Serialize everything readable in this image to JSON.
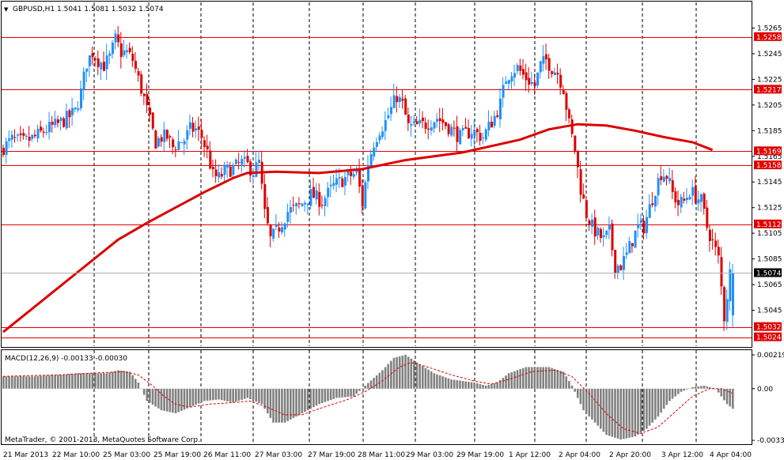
{
  "window": {
    "header": "GBPUSD,H1  1.5041 1.5081 1.5032 1.5074",
    "dropdown_glyph": "▼",
    "copyright": "MetaTrader, © 2001-2013, MetaQuotes Software Corp."
  },
  "colors": {
    "background": "#ffffff",
    "bull": "#1e90ff",
    "bear": "#dc0000",
    "ma": "#dc0000",
    "level_line": "#e00000",
    "histogram": "#808080",
    "signal": "#dc0000",
    "grid": "#000000"
  },
  "macd": {
    "label": "MACD(12,26,9) -0.00133 -0.00030",
    "ticks": [
      {
        "value": 0.00219,
        "label": "0.00219"
      },
      {
        "value": 0,
        "label": "0.00"
      },
      {
        "value": -0.00335,
        "label": "-0.00335"
      }
    ]
  },
  "price_ticks": [
    "1.5265",
    "1.5245",
    "1.5225",
    "1.5205",
    "1.5185",
    "1.5165",
    "1.5145",
    "1.5125",
    "1.5105",
    "1.5085",
    "1.5065",
    "1.5045"
  ],
  "level_tags": [
    "1.5258",
    "1.5217",
    "1.5169",
    "1.5158",
    "1.5112",
    "1.5074",
    "1.5032",
    "1.5024"
  ],
  "time_labels": [
    "21 Mar 2013",
    "22 Mar 10:00",
    "25 Mar 03:00",
    "25 Mar 19:00",
    "26 Mar 11:00",
    "27 Mar 03:00",
    "27 Mar 19:00",
    "28 Mar 11:00",
    "29 Mar 03:00",
    "29 Mar 19:00",
    "1 Apr 12:00",
    "2 Apr 04:00",
    "2 Apr 20:00",
    "3 Apr 12:00",
    "4 Apr 04:00"
  ],
  "chart_data": [
    {
      "type": "candlestick",
      "symbol": "GBPUSD",
      "timeframe": "H1",
      "ohlc_last": {
        "open": 1.5041,
        "high": 1.5081,
        "low": 1.5032,
        "close": 1.5074
      },
      "y_axis": {
        "ticks": [
          1.5265,
          1.5245,
          1.5225,
          1.5205,
          1.5185,
          1.5165,
          1.5145,
          1.5125,
          1.5105,
          1.5085,
          1.5065,
          1.5045
        ],
        "range": [
          1.5017,
          1.5285
        ]
      },
      "x_axis": {
        "labels": [
          "21 Mar 2013",
          "22 Mar 10:00",
          "25 Mar 03:00",
          "25 Mar 19:00",
          "26 Mar 11:00",
          "27 Mar 03:00",
          "27 Mar 19:00",
          "28 Mar 11:00",
          "29 Mar 03:00",
          "29 Mar 19:00",
          "1 Apr 12:00",
          "2 Apr 04:00",
          "2 Apr 20:00",
          "3 Apr 12:00",
          "4 Apr 04:00"
        ]
      },
      "horizontal_levels": [
        1.5258,
        1.5217,
        1.5169,
        1.5158,
        1.5112,
        1.5032,
        1.5024
      ],
      "current_price": 1.5074,
      "grid": "vertical dashed",
      "price_path": [
        [
          0,
          1.517
        ],
        [
          4,
          1.5178
        ],
        [
          8,
          1.5176
        ],
        [
          12,
          1.518
        ],
        [
          16,
          1.5186
        ],
        [
          20,
          1.519
        ],
        [
          24,
          1.5196
        ],
        [
          26,
          1.52
        ],
        [
          28,
          1.5215
        ],
        [
          30,
          1.5238
        ],
        [
          32,
          1.5246
        ],
        [
          34,
          1.524
        ],
        [
          36,
          1.5236
        ],
        [
          38,
          1.5242
        ],
        [
          40,
          1.5256
        ],
        [
          42,
          1.5246
        ],
        [
          44,
          1.5246
        ],
        [
          46,
          1.524
        ],
        [
          48,
          1.5225
        ],
        [
          50,
          1.521
        ],
        [
          52,
          1.5192
        ],
        [
          54,
          1.5176
        ],
        [
          56,
          1.518
        ],
        [
          58,
          1.518
        ],
        [
          60,
          1.5172
        ],
        [
          62,
          1.5176
        ],
        [
          64,
          1.5178
        ],
        [
          66,
          1.5186
        ],
        [
          68,
          1.5186
        ],
        [
          70,
          1.518
        ],
        [
          72,
          1.5168
        ],
        [
          74,
          1.515
        ],
        [
          76,
          1.5148
        ],
        [
          78,
          1.5153
        ],
        [
          80,
          1.5155
        ],
        [
          82,
          1.5157
        ],
        [
          84,
          1.516
        ],
        [
          86,
          1.5158
        ],
        [
          88,
          1.5153
        ],
        [
          90,
          1.516
        ],
        [
          92,
          1.512
        ],
        [
          94,
          1.51
        ],
        [
          96,
          1.5106
        ],
        [
          98,
          1.5114
        ],
        [
          100,
          1.5122
        ],
        [
          104,
          1.5126
        ],
        [
          108,
          1.5135
        ],
        [
          112,
          1.513
        ],
        [
          116,
          1.5142
        ],
        [
          120,
          1.5148
        ],
        [
          124,
          1.5152
        ],
        [
          126,
          1.5128
        ],
        [
          128,
          1.516
        ],
        [
          130,
          1.5176
        ],
        [
          132,
          1.5186
        ],
        [
          134,
          1.5192
        ],
        [
          136,
          1.5202
        ],
        [
          138,
          1.5212
        ],
        [
          140,
          1.5205
        ],
        [
          142,
          1.5188
        ],
        [
          144,
          1.5188
        ],
        [
          148,
          1.519
        ],
        [
          152,
          1.5195
        ],
        [
          156,
          1.5188
        ],
        [
          160,
          1.518
        ],
        [
          164,
          1.5185
        ],
        [
          168,
          1.518
        ],
        [
          172,
          1.5196
        ],
        [
          174,
          1.5206
        ],
        [
          176,
          1.5226
        ],
        [
          178,
          1.5232
        ],
        [
          180,
          1.5234
        ],
        [
          182,
          1.5228
        ],
        [
          184,
          1.5224
        ],
        [
          186,
          1.522
        ],
        [
          188,
          1.5236
        ],
        [
          190,
          1.524
        ],
        [
          192,
          1.5234
        ],
        [
          194,
          1.523
        ],
        [
          196,
          1.5218
        ],
        [
          198,
          1.519
        ],
        [
          200,
          1.517
        ],
        [
          202,
          1.514
        ],
        [
          204,
          1.512
        ],
        [
          206,
          1.511
        ],
        [
          208,
          1.5104
        ],
        [
          210,
          1.51
        ],
        [
          212,
          1.5106
        ],
        [
          214,
          1.508
        ],
        [
          216,
          1.508
        ],
        [
          218,
          1.5088
        ],
        [
          220,
          1.51
        ],
        [
          222,
          1.511
        ],
        [
          224,
          1.511
        ],
        [
          226,
          1.5125
        ],
        [
          228,
          1.514
        ],
        [
          230,
          1.5152
        ],
        [
          232,
          1.515
        ],
        [
          234,
          1.5136
        ],
        [
          236,
          1.5128
        ],
        [
          238,
          1.513
        ],
        [
          240,
          1.5138
        ],
        [
          242,
          1.5134
        ],
        [
          244,
          1.513
        ],
        [
          246,
          1.511
        ],
        [
          248,
          1.5098
        ],
        [
          250,
          1.5085
        ],
        [
          252,
          1.504
        ],
        [
          254,
          1.5074
        ]
      ],
      "moving_average": [
        [
          0,
          1.5028
        ],
        [
          10,
          1.5046
        ],
        [
          20,
          1.5064
        ],
        [
          30,
          1.5082
        ],
        [
          40,
          1.51
        ],
        [
          50,
          1.5113
        ],
        [
          60,
          1.5125
        ],
        [
          70,
          1.5137
        ],
        [
          80,
          1.5148
        ],
        [
          85,
          1.5152
        ],
        [
          95,
          1.5153
        ],
        [
          110,
          1.5152
        ],
        [
          125,
          1.5155
        ],
        [
          140,
          1.5162
        ],
        [
          160,
          1.5168
        ],
        [
          180,
          1.5178
        ],
        [
          190,
          1.5186
        ],
        [
          200,
          1.519
        ],
        [
          210,
          1.5189
        ],
        [
          220,
          1.5185
        ],
        [
          230,
          1.518
        ],
        [
          240,
          1.5176
        ],
        [
          247,
          1.517
        ]
      ]
    },
    {
      "type": "bar",
      "name": "MACD(12,26,9)",
      "last_values": {
        "macd": -0.00133,
        "signal": -0.0003
      },
      "y_axis": {
        "ticks": [
          0.00219,
          0,
          -0.00335
        ],
        "range": [
          -0.0036,
          0.0025
        ]
      },
      "macd_path": [
        [
          0,
          0.0008
        ],
        [
          10,
          0.0008
        ],
        [
          20,
          0.0009
        ],
        [
          26,
          0.001
        ],
        [
          30,
          0.001
        ],
        [
          36,
          0.001
        ],
        [
          40,
          0.0012
        ],
        [
          44,
          0.0011
        ],
        [
          47,
          0.0004
        ],
        [
          50,
          -0.0008
        ],
        [
          55,
          -0.0014
        ],
        [
          60,
          -0.0016
        ],
        [
          65,
          -0.0012
        ],
        [
          70,
          -0.0008
        ],
        [
          75,
          -0.0007
        ],
        [
          80,
          -0.0009
        ],
        [
          85,
          -0.0006
        ],
        [
          90,
          -0.001
        ],
        [
          94,
          -0.0022
        ],
        [
          98,
          -0.0022
        ],
        [
          104,
          -0.0016
        ],
        [
          110,
          -0.001
        ],
        [
          116,
          -0.0006
        ],
        [
          122,
          -0.0005
        ],
        [
          126,
          0.0002
        ],
        [
          132,
          0.0012
        ],
        [
          136,
          0.002
        ],
        [
          140,
          0.0022
        ],
        [
          144,
          0.0017
        ],
        [
          150,
          0.001
        ],
        [
          156,
          0.0006
        ],
        [
          164,
          0.0004
        ],
        [
          168,
          0.0002
        ],
        [
          172,
          0.0004
        ],
        [
          176,
          0.001
        ],
        [
          182,
          0.0014
        ],
        [
          190,
          0.0014
        ],
        [
          195,
          0.0011
        ],
        [
          198,
          0.0002
        ],
        [
          202,
          -0.0014
        ],
        [
          206,
          -0.0022
        ],
        [
          210,
          -0.003
        ],
        [
          215,
          -0.0033
        ],
        [
          220,
          -0.0031
        ],
        [
          224,
          -0.0026
        ],
        [
          228,
          -0.0018
        ],
        [
          232,
          -0.0008
        ],
        [
          236,
          -0.0002
        ],
        [
          240,
          0.0001
        ],
        [
          244,
          0.0002
        ],
        [
          248,
          0.0
        ],
        [
          252,
          -0.001
        ],
        [
          254,
          -0.0013
        ]
      ],
      "signal_path": [
        [
          0,
          0.0008
        ],
        [
          20,
          0.0009
        ],
        [
          30,
          0.001
        ],
        [
          42,
          0.0011
        ],
        [
          47,
          0.0009
        ],
        [
          52,
          0.0002
        ],
        [
          56,
          -0.0005
        ],
        [
          60,
          -0.001
        ],
        [
          65,
          -0.0012
        ],
        [
          72,
          -0.001
        ],
        [
          80,
          -0.0009
        ],
        [
          86,
          -0.0008
        ],
        [
          92,
          -0.0012
        ],
        [
          98,
          -0.0017
        ],
        [
          104,
          -0.0017
        ],
        [
          110,
          -0.0013
        ],
        [
          120,
          -0.0007
        ],
        [
          126,
          -0.0002
        ],
        [
          132,
          0.0005
        ],
        [
          138,
          0.0014
        ],
        [
          142,
          0.0017
        ],
        [
          148,
          0.0014
        ],
        [
          156,
          0.0009
        ],
        [
          164,
          0.0005
        ],
        [
          170,
          0.0003
        ],
        [
          176,
          0.0006
        ],
        [
          184,
          0.0011
        ],
        [
          192,
          0.0012
        ],
        [
          198,
          0.0008
        ],
        [
          204,
          -0.0003
        ],
        [
          210,
          -0.0016
        ],
        [
          216,
          -0.0026
        ],
        [
          222,
          -0.0029
        ],
        [
          228,
          -0.0025
        ],
        [
          234,
          -0.0015
        ],
        [
          240,
          -0.0005
        ],
        [
          246,
          0.0
        ],
        [
          250,
          0.0
        ],
        [
          254,
          -0.0003
        ]
      ]
    }
  ]
}
